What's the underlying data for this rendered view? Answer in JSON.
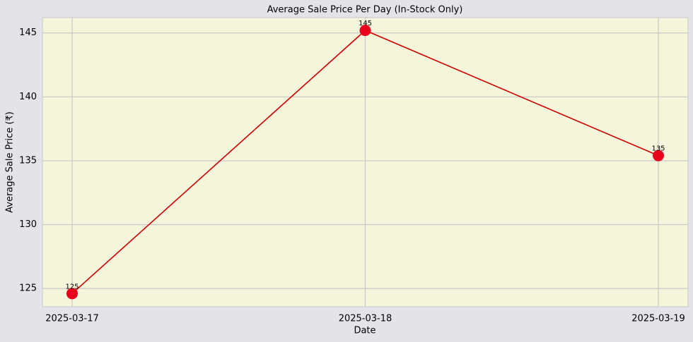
{
  "chart_data": {
    "type": "line",
    "title": "Average Sale Price Per Day (In-Stock Only)",
    "x_label": "Date",
    "y_label": "Average Sale Price (₹)",
    "categories": [
      "2025-03-17",
      "2025-03-18",
      "2025-03-19"
    ],
    "series": [
      {
        "name": "Average Sale Price",
        "color": "#cc0000",
        "marker_color": "#e8001c",
        "values": [
          124.6,
          145.2,
          135.4
        ],
        "value_labels": [
          "125",
          "145",
          "135"
        ]
      }
    ],
    "ylim": [
      123.57,
      146.2
    ],
    "yticks": [
      125,
      130,
      135,
      140,
      145
    ],
    "grid": true
  }
}
